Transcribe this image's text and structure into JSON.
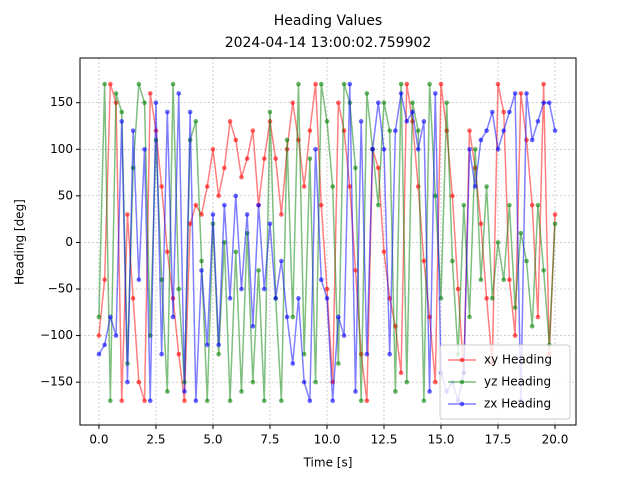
{
  "chart_data": {
    "type": "line",
    "title": "Heading Values",
    "subtitle": "2024-04-14 13:00:02.759902",
    "x_label": "Time [s]",
    "y_label": "Heading [deg]",
    "x": [
      0,
      0.25,
      0.5,
      0.75,
      1,
      1.25,
      1.5,
      1.75,
      2,
      2.25,
      2.5,
      2.75,
      3,
      3.25,
      3.5,
      3.75,
      4,
      4.25,
      4.5,
      4.75,
      5,
      5.25,
      5.5,
      5.75,
      6,
      6.25,
      6.5,
      6.75,
      7,
      7.25,
      7.5,
      7.75,
      8,
      8.25,
      8.5,
      8.75,
      9,
      9.25,
      9.5,
      9.75,
      10,
      10.25,
      10.5,
      10.75,
      11,
      11.25,
      11.5,
      11.75,
      12,
      12.25,
      12.5,
      12.75,
      13,
      13.25,
      13.5,
      13.75,
      14,
      14.25,
      14.5,
      14.75,
      15,
      15.25,
      15.5,
      15.75,
      16,
      16.25,
      16.5,
      16.75,
      17,
      17.25,
      17.5,
      17.75,
      18,
      18.25,
      18.5,
      18.75,
      19,
      19.25,
      19.5,
      19.75,
      20
    ],
    "series": [
      {
        "name": "xy Heading",
        "color": "#ff0000",
        "values": [
          -100,
          -40,
          170,
          150,
          -170,
          30,
          -60,
          -150,
          -170,
          160,
          120,
          60,
          -10,
          -60,
          -120,
          -170,
          20,
          40,
          30,
          60,
          100,
          50,
          80,
          130,
          110,
          70,
          90,
          120,
          40,
          90,
          130,
          90,
          30,
          100,
          150,
          110,
          60,
          120,
          170,
          40,
          -50,
          -150,
          150,
          120,
          60,
          -30,
          -120,
          -170,
          100,
          80,
          -10,
          -60,
          -90,
          -140,
          170,
          130,
          60,
          -20,
          -80,
          -150,
          170,
          120,
          50,
          -50,
          -140,
          120,
          80,
          20,
          -60,
          -130,
          170,
          140,
          -40,
          -100,
          160,
          110,
          40,
          -80,
          170,
          -120,
          30
        ]
      },
      {
        "name": "yz Heading",
        "color": "#008000",
        "values": [
          -80,
          170,
          -170,
          160,
          140,
          -130,
          80,
          170,
          150,
          -100,
          110,
          -40,
          -160,
          170,
          -50,
          -150,
          110,
          130,
          -20,
          -170,
          20,
          -120,
          0,
          -170,
          -10,
          -160,
          10,
          -150,
          -30,
          -170,
          140,
          -60,
          -170,
          110,
          -80,
          170,
          -120,
          90,
          -150,
          170,
          130,
          60,
          -130,
          170,
          150,
          80,
          -170,
          160,
          100,
          40,
          150,
          120,
          -160,
          170,
          -150,
          150,
          120,
          -170,
          170,
          50,
          -60,
          150,
          -20,
          -120,
          40,
          -80,
          100,
          -40,
          60,
          -60,
          0,
          -40,
          40,
          -70,
          10,
          -20,
          -90,
          40,
          -30,
          -110,
          20
        ]
      },
      {
        "name": "zx Heading",
        "color": "#0000ff",
        "values": [
          -120,
          -110,
          -80,
          -100,
          130,
          -150,
          120,
          -40,
          100,
          -170,
          150,
          -120,
          140,
          -80,
          160,
          -160,
          140,
          -170,
          -30,
          -110,
          30,
          -110,
          40,
          -60,
          50,
          -50,
          30,
          -90,
          40,
          -50,
          20,
          -60,
          -20,
          -80,
          -130,
          -60,
          -150,
          -170,
          100,
          -40,
          -60,
          -170,
          -80,
          -100,
          170,
          -160,
          130,
          -120,
          100,
          150,
          100,
          -120,
          120,
          160,
          130,
          140,
          100,
          130,
          -160,
          160,
          -140,
          -160,
          -150,
          -170,
          -140,
          100,
          60,
          110,
          120,
          140,
          100,
          120,
          140,
          160,
          -170,
          160,
          110,
          130,
          150,
          150,
          120
        ]
      }
    ],
    "xlim": [
      -0.83,
      20.92
    ],
    "ylim": [
      -196,
      198
    ],
    "xticks": [
      {
        "value": 0,
        "label": "0.0"
      },
      2.5,
      {
        "value": 5,
        "label": "5.0"
      },
      7.5,
      {
        "value": 10,
        "label": "10.0"
      },
      12.5,
      {
        "value": 15,
        "label": "15.0"
      },
      17.5,
      {
        "value": 20,
        "label": "20.0"
      }
    ],
    "yticks": [
      {
        "value": -150,
        "label": "−150"
      },
      {
        "value": -100,
        "label": "−100"
      },
      {
        "value": -50,
        "label": "−50"
      },
      0,
      50,
      100,
      150
    ],
    "grid": true,
    "legend": "lower right"
  }
}
